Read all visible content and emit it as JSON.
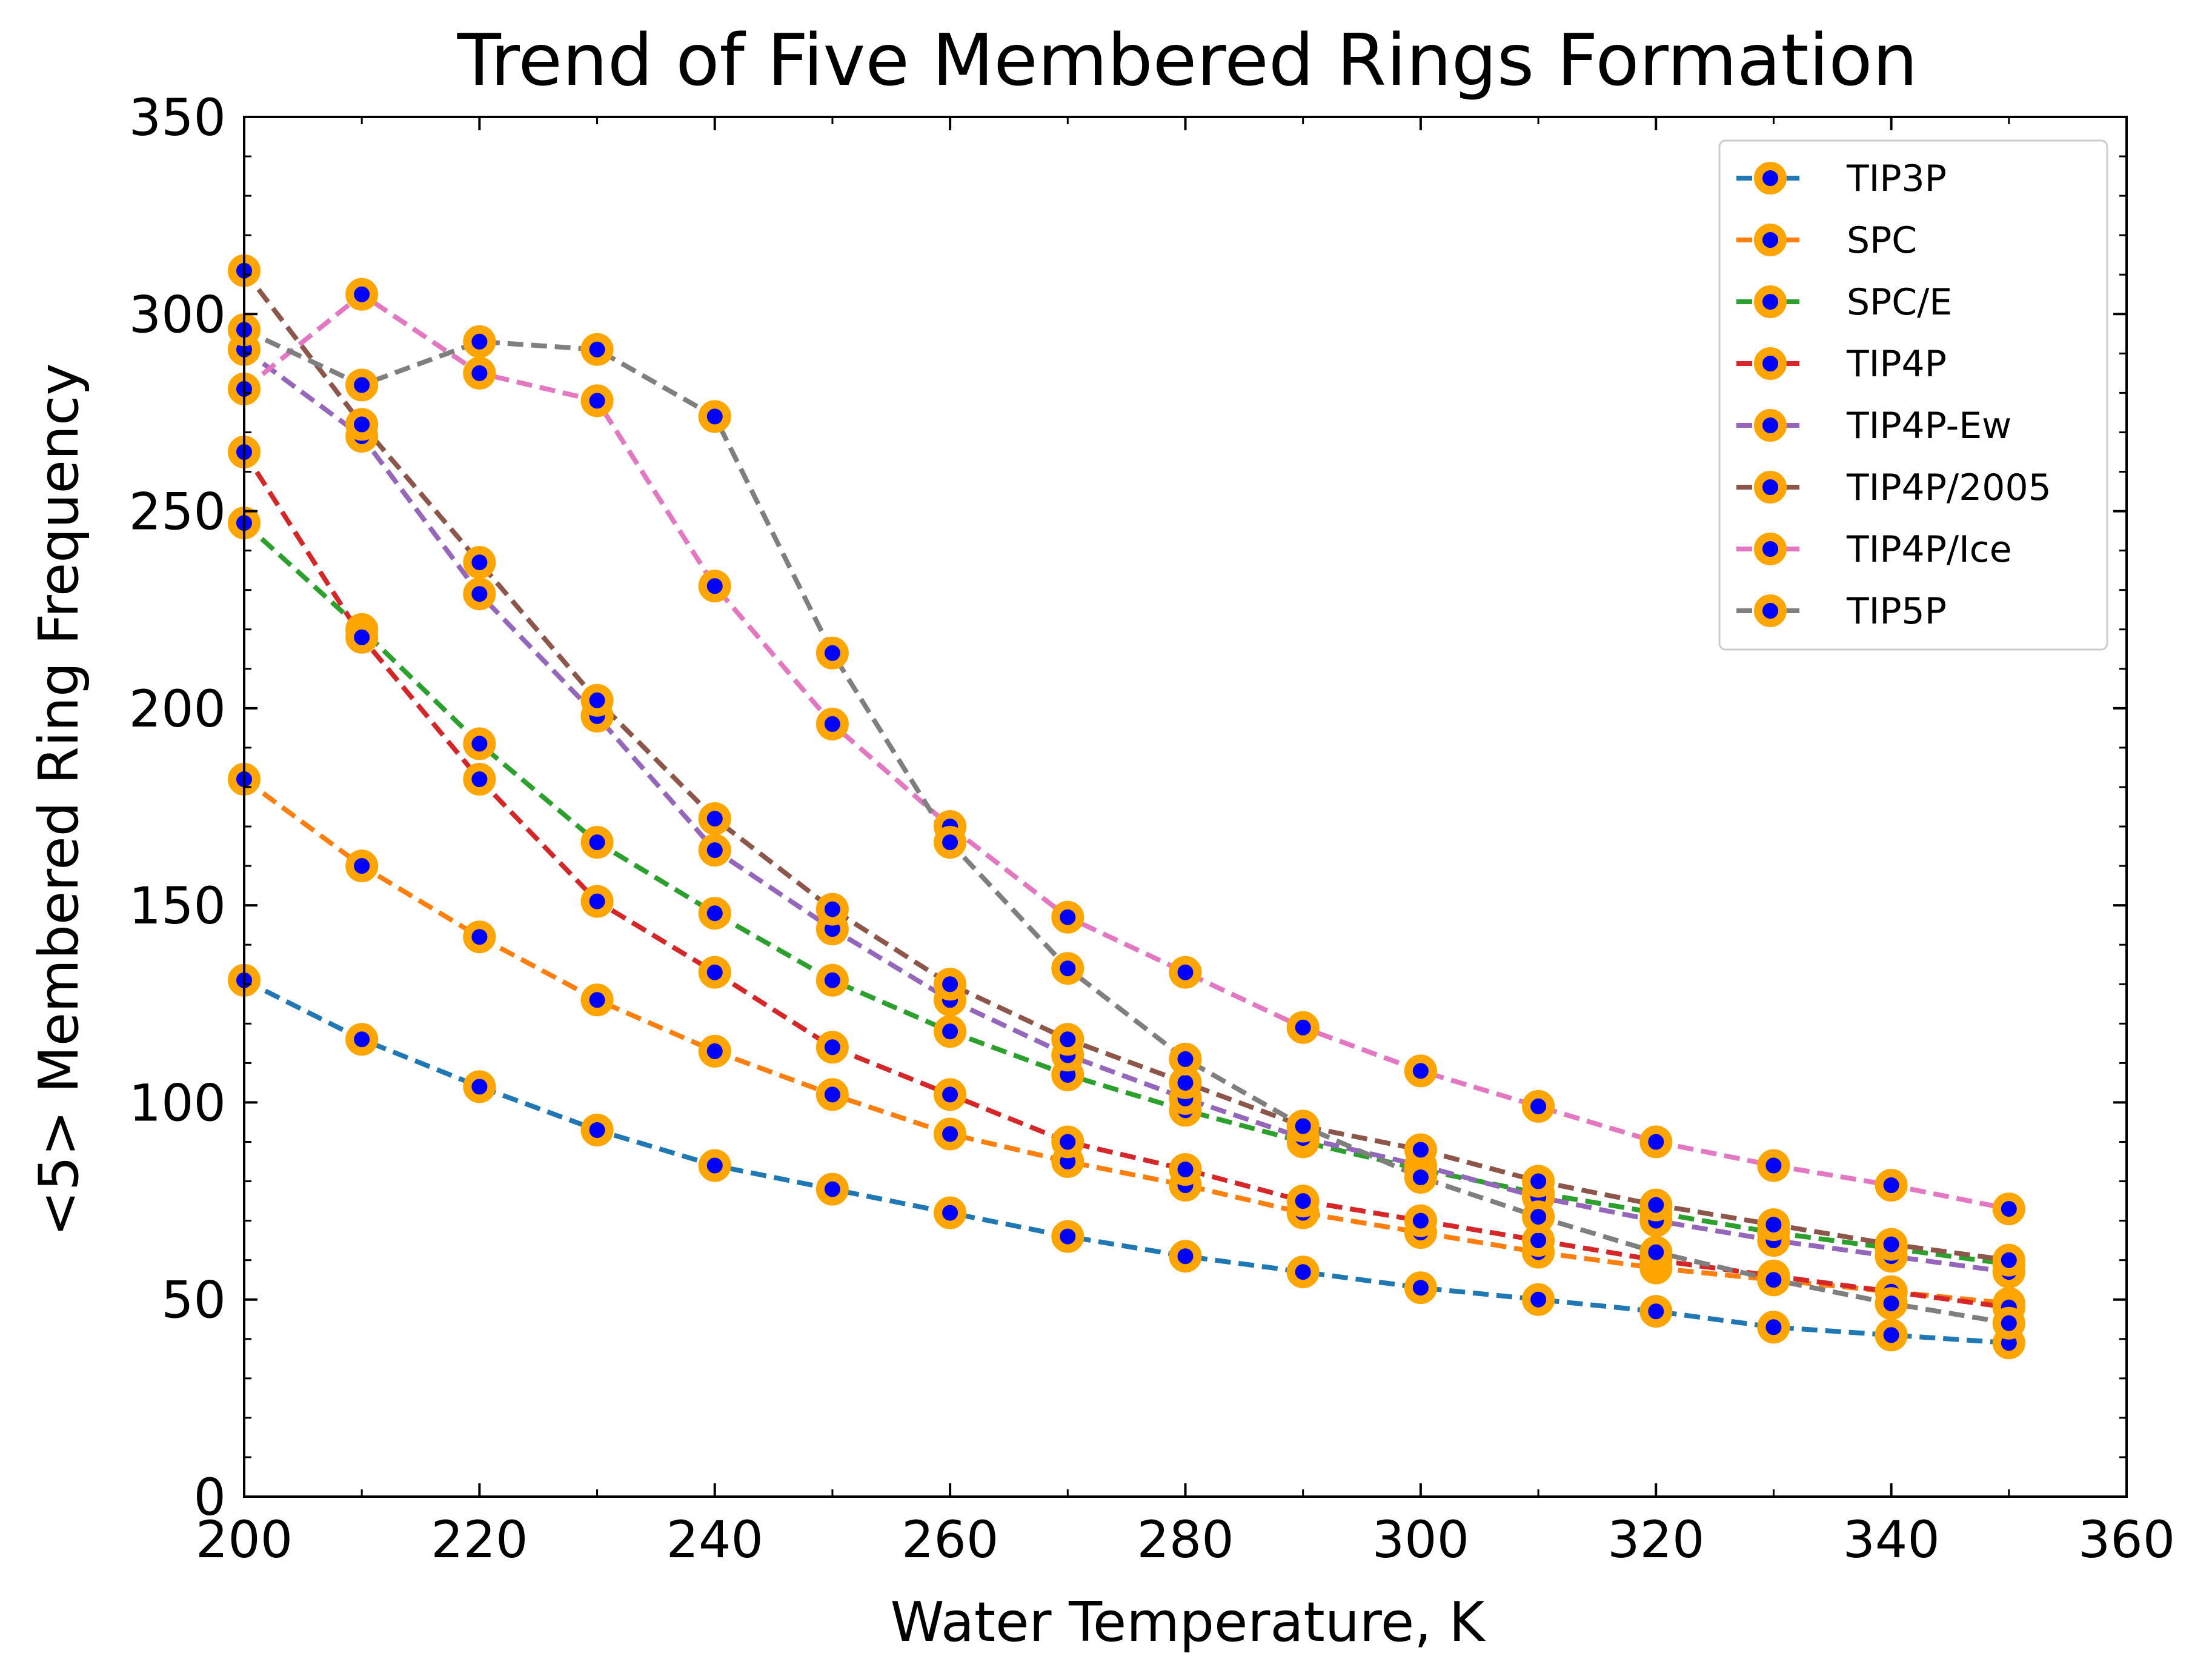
{
  "chart_data": {
    "type": "line",
    "title": "Trend of Five Membered Rings Formation",
    "xlabel": "Water Temperature, K",
    "ylabel": "<5> Membered Ring Frequency",
    "xlim": [
      200,
      360
    ],
    "ylim": [
      0,
      350
    ],
    "xticks": [
      "200",
      "220",
      "240",
      "260",
      "280",
      "300",
      "320",
      "340",
      "360"
    ],
    "yticks": [
      "0",
      "50",
      "100",
      "150",
      "200",
      "250",
      "300",
      "350"
    ],
    "grid": false,
    "legend_position": "top-right",
    "marker": {
      "face_color": "#0000ff",
      "edge_color": "#ffa500"
    },
    "x": [
      200,
      210,
      220,
      230,
      240,
      250,
      260,
      270,
      280,
      290,
      300,
      310,
      320,
      330,
      340,
      350
    ],
    "series": [
      {
        "name": "TIP3P",
        "color": "#1f77b4",
        "values": [
          131,
          116,
          104,
          93,
          84,
          78,
          72,
          66,
          61,
          57,
          53,
          50,
          47,
          43,
          41,
          39
        ]
      },
      {
        "name": "SPC",
        "color": "#ff7f0e",
        "values": [
          182,
          160,
          142,
          126,
          113,
          102,
          92,
          85,
          79,
          72,
          67,
          62,
          58,
          55,
          52,
          49
        ]
      },
      {
        "name": "SPC/E",
        "color": "#2ca02c",
        "values": [
          247,
          220,
          191,
          166,
          148,
          131,
          118,
          107,
          98,
          90,
          83,
          77,
          72,
          67,
          63,
          59
        ]
      },
      {
        "name": "TIP4P",
        "color": "#d62728",
        "values": [
          265,
          218,
          182,
          151,
          133,
          114,
          102,
          90,
          83,
          75,
          70,
          65,
          60,
          56,
          52,
          48
        ]
      },
      {
        "name": "TIP4P-Ew",
        "color": "#9467bd",
        "values": [
          291,
          269,
          229,
          198,
          164,
          144,
          126,
          112,
          101,
          91,
          84,
          76,
          70,
          65,
          61,
          57
        ]
      },
      {
        "name": "TIP4P/2005",
        "color": "#8c564b",
        "values": [
          311,
          272,
          237,
          202,
          172,
          149,
          130,
          116,
          105,
          94,
          88,
          80,
          74,
          69,
          64,
          60
        ]
      },
      {
        "name": "TIP4P/Ice",
        "color": "#e377c2",
        "values": [
          281,
          305,
          285,
          278,
          231,
          196,
          170,
          147,
          133,
          119,
          108,
          99,
          90,
          84,
          79,
          73
        ]
      },
      {
        "name": "TIP5P",
        "color": "#7f7f7f",
        "values": [
          296,
          282,
          293,
          291,
          274,
          214,
          166,
          134,
          111,
          94,
          81,
          71,
          62,
          55,
          49,
          44
        ]
      }
    ]
  }
}
